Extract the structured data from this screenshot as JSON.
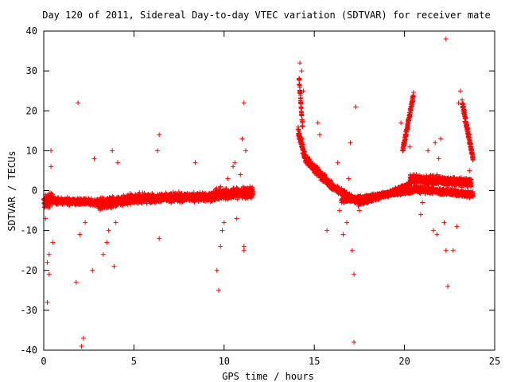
{
  "chart_data": {
    "type": "scatter",
    "title": "Day 120 of 2011, Sidereal Day-to-day VTEC variation (SDTVAR) for receiver mate",
    "xlabel": "GPS time / hours",
    "ylabel": "SDTVAR / TECUs",
    "xlim": [
      0,
      25
    ],
    "ylim": [
      -40,
      40
    ],
    "x_ticks": [
      0,
      5,
      10,
      15,
      20,
      25
    ],
    "y_ticks": [
      -40,
      -30,
      -20,
      -10,
      0,
      10,
      20,
      30,
      40
    ],
    "marker": "+",
    "marker_color": "#ff0000",
    "grid": false,
    "legend": "none",
    "series": [
      {
        "dense_segments": [
          {
            "x_start": 0.0,
            "x_end": 0.5,
            "y_start": -3.0,
            "y_end": -2.0,
            "spread": 3.0
          },
          {
            "x_start": 0.5,
            "x_end": 3.0,
            "y_start": -2.5,
            "y_end": -3.0,
            "spread": 1.5
          },
          {
            "x_start": 3.0,
            "x_end": 5.0,
            "y_start": -3.5,
            "y_end": -2.0,
            "spread": 2.5
          },
          {
            "x_start": 5.0,
            "x_end": 9.5,
            "y_start": -2.0,
            "y_end": -1.5,
            "spread": 2.0
          },
          {
            "x_start": 9.5,
            "x_end": 11.6,
            "y_start": -1.0,
            "y_end": -0.5,
            "spread": 2.5
          },
          {
            "x_start": 14.1,
            "x_end": 14.5,
            "y_start": 15.0,
            "y_end": 8.0,
            "spread": 2.5
          },
          {
            "x_start": 14.5,
            "x_end": 16.0,
            "y_start": 8.0,
            "y_end": 1.0,
            "spread": 2.0
          },
          {
            "x_start": 16.0,
            "x_end": 17.5,
            "y_start": 1.0,
            "y_end": -3.0,
            "spread": 1.5
          },
          {
            "x_start": 17.5,
            "x_end": 19.0,
            "y_start": -3.0,
            "y_end": -1.0,
            "spread": 1.2
          },
          {
            "x_start": 19.0,
            "x_end": 20.3,
            "y_start": -1.0,
            "y_end": 1.5,
            "spread": 1.2
          },
          {
            "x_start": 20.3,
            "x_end": 23.7,
            "y_start": 3.0,
            "y_end": 2.0,
            "spread": 2.0
          },
          {
            "x_start": 16.5,
            "x_end": 20.5,
            "y_start": -2.5,
            "y_end": 0.0,
            "spread": 1.0
          },
          {
            "x_start": 20.5,
            "x_end": 23.8,
            "y_start": 0.5,
            "y_end": -1.0,
            "spread": 1.5
          },
          {
            "x_start": 23.2,
            "x_end": 23.8,
            "y_start": 22.0,
            "y_end": 8.0,
            "spread": 2.0
          },
          {
            "x_start": 19.9,
            "x_end": 20.5,
            "y_start": 10.0,
            "y_end": 24.0,
            "spread": 1.5
          },
          {
            "x_start": 14.15,
            "x_end": 14.35,
            "y_start": 28.0,
            "y_end": 16.0,
            "spread": 1.5
          }
        ],
        "scattered_points": [
          [
            0.1,
            -7
          ],
          [
            0.2,
            -28
          ],
          [
            0.3,
            -16
          ],
          [
            0.3,
            -21
          ],
          [
            0.4,
            10
          ],
          [
            0.4,
            6
          ],
          [
            0.5,
            -13
          ],
          [
            0.2,
            -18
          ],
          [
            1.8,
            -23
          ],
          [
            1.9,
            22
          ],
          [
            2.1,
            -39
          ],
          [
            2.2,
            -37
          ],
          [
            2.0,
            -11
          ],
          [
            2.3,
            -8
          ],
          [
            2.7,
            -20
          ],
          [
            2.8,
            8
          ],
          [
            3.3,
            -16
          ],
          [
            3.5,
            -13
          ],
          [
            3.8,
            10
          ],
          [
            3.9,
            -19
          ],
          [
            4.0,
            -8
          ],
          [
            3.6,
            -10
          ],
          [
            4.1,
            7
          ],
          [
            6.4,
            14
          ],
          [
            6.3,
            10
          ],
          [
            6.4,
            -12
          ],
          [
            8.4,
            7
          ],
          [
            9.6,
            -20
          ],
          [
            9.7,
            -25
          ],
          [
            9.8,
            -14
          ],
          [
            9.9,
            -10
          ],
          [
            10.0,
            -8
          ],
          [
            9.8,
            1
          ],
          [
            10.2,
            3
          ],
          [
            10.5,
            6
          ],
          [
            10.6,
            7
          ],
          [
            10.7,
            -7
          ],
          [
            11.0,
            13
          ],
          [
            11.1,
            22
          ],
          [
            11.1,
            -14
          ],
          [
            11.1,
            -15
          ],
          [
            11.2,
            10
          ],
          [
            10.9,
            4
          ],
          [
            14.2,
            32
          ],
          [
            14.3,
            30
          ],
          [
            14.4,
            25
          ],
          [
            15.2,
            17
          ],
          [
            15.3,
            14
          ],
          [
            15.7,
            -10
          ],
          [
            16.3,
            7
          ],
          [
            16.4,
            -5
          ],
          [
            16.6,
            -11
          ],
          [
            16.8,
            -8
          ],
          [
            17.0,
            12
          ],
          [
            17.1,
            -15
          ],
          [
            17.2,
            -38
          ],
          [
            17.2,
            -21
          ],
          [
            17.3,
            21
          ],
          [
            17.5,
            -5
          ],
          [
            16.9,
            3
          ],
          [
            19.8,
            17
          ],
          [
            20.3,
            11
          ],
          [
            20.9,
            -6
          ],
          [
            21.0,
            -3
          ],
          [
            21.3,
            10
          ],
          [
            21.6,
            -10
          ],
          [
            21.8,
            -11
          ],
          [
            21.7,
            12
          ],
          [
            21.9,
            8
          ],
          [
            22.0,
            13
          ],
          [
            22.3,
            38
          ],
          [
            22.3,
            -15
          ],
          [
            22.4,
            -24
          ],
          [
            22.2,
            -8
          ],
          [
            22.7,
            -15
          ],
          [
            22.9,
            -9
          ],
          [
            23.1,
            25
          ],
          [
            23.0,
            22
          ],
          [
            23.5,
            0
          ],
          [
            23.6,
            5
          ],
          [
            23.7,
            11
          ]
        ]
      }
    ]
  }
}
